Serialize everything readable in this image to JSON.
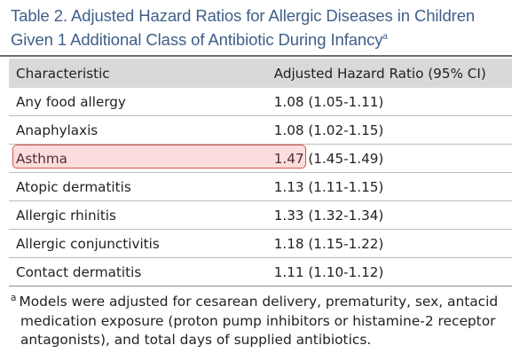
{
  "table": {
    "title": "Table 2. Adjusted Hazard Ratios for Allergic Diseases in Children Given 1 Additional Class of Antibiotic During Infancy",
    "title_marker": "a",
    "headers": {
      "characteristic": "Characteristic",
      "ratio": "Adjusted Hazard Ratio (95% CI)"
    },
    "rows": [
      {
        "characteristic": "Any food allergy",
        "hr": "1.08",
        "ci": "(1.05-1.11)"
      },
      {
        "characteristic": "Anaphylaxis",
        "hr": "1.08",
        "ci": "(1.02-1.15)"
      },
      {
        "characteristic": "Asthma",
        "hr": "1.47",
        "ci": "(1.45-1.49)"
      },
      {
        "characteristic": "Atopic dermatitis",
        "hr": "1.13",
        "ci": "(1.11-1.15)"
      },
      {
        "characteristic": "Allergic rhinitis",
        "hr": "1.33",
        "ci": "(1.32-1.34)"
      },
      {
        "characteristic": "Allergic conjunctivitis",
        "hr": "1.18",
        "ci": "(1.15-1.22)"
      },
      {
        "characteristic": "Contact dermatitis",
        "hr": "1.11",
        "ci": "(1.10-1.12)"
      }
    ],
    "highlighted_row": "Asthma",
    "highlight_color": "#d9534f",
    "title_color": "#3f5f8a",
    "header_bg": "#d9d9d9"
  },
  "footnote": {
    "marker": "a",
    "line1": "Models were adjusted for cesarean delivery, prematurity, sex, antacid",
    "line2": "medication exposure (proton pump inhibitors or histamine-2 receptor",
    "line3": "antagonists), and total days of supplied antibiotics."
  }
}
